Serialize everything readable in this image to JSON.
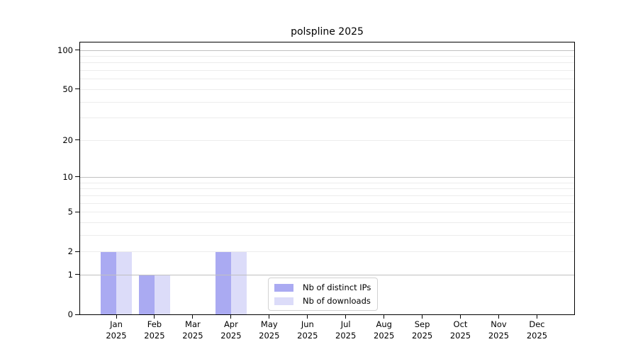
{
  "chart_data": {
    "type": "bar",
    "title": "polspline 2025",
    "x_categories": [
      "Jan",
      "Feb",
      "Mar",
      "Apr",
      "May",
      "Jun",
      "Jul",
      "Aug",
      "Sep",
      "Oct",
      "Nov",
      "Dec"
    ],
    "x_year": "2025",
    "series": [
      {
        "name": "Nb of distinct IPs",
        "color": "#aaaaf2",
        "values": [
          2,
          1,
          0,
          2,
          0,
          0,
          0,
          0,
          0,
          0,
          0,
          0
        ]
      },
      {
        "name": "Nb of downloads",
        "color": "#dcdcf9",
        "values": [
          2,
          1,
          0,
          2,
          0,
          0,
          0,
          0,
          0,
          0,
          0,
          0
        ]
      }
    ],
    "y_axis": {
      "scale": "log1p",
      "max": 114,
      "ticks": [
        0,
        1,
        2,
        5,
        10,
        20,
        50,
        100
      ],
      "grid_minor": [
        2,
        3,
        4,
        5,
        6,
        7,
        8,
        9,
        20,
        30,
        40,
        50,
        60,
        70,
        80,
        90
      ],
      "grid_major": [
        1,
        10,
        100
      ]
    },
    "legend_position": "lower center-right inside plot",
    "colors": {
      "grid_minor": "#ececec",
      "grid_major": "#c0c0c0",
      "axis": "#000000",
      "background": "#ffffff"
    }
  }
}
